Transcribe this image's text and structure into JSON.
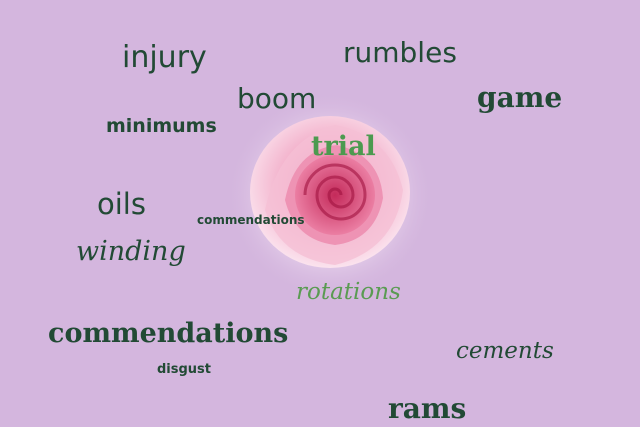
{
  "background_color": "#d4b6de",
  "text_color": "#224a35",
  "accent_text_color": "#4c9a4f",
  "image": {
    "subject": "pink-rose"
  },
  "words": {
    "injury": "injury",
    "rumbles": "rumbles",
    "game": "game",
    "boom": "boom",
    "minimums": "minimums",
    "trial": "trial",
    "oils": "oils",
    "commendations_small": "commendations",
    "winding": "winding",
    "rotations": "rotations",
    "commendations_big": "commendations",
    "cements": "cements",
    "disgust": "disgust",
    "rams": "rams"
  }
}
